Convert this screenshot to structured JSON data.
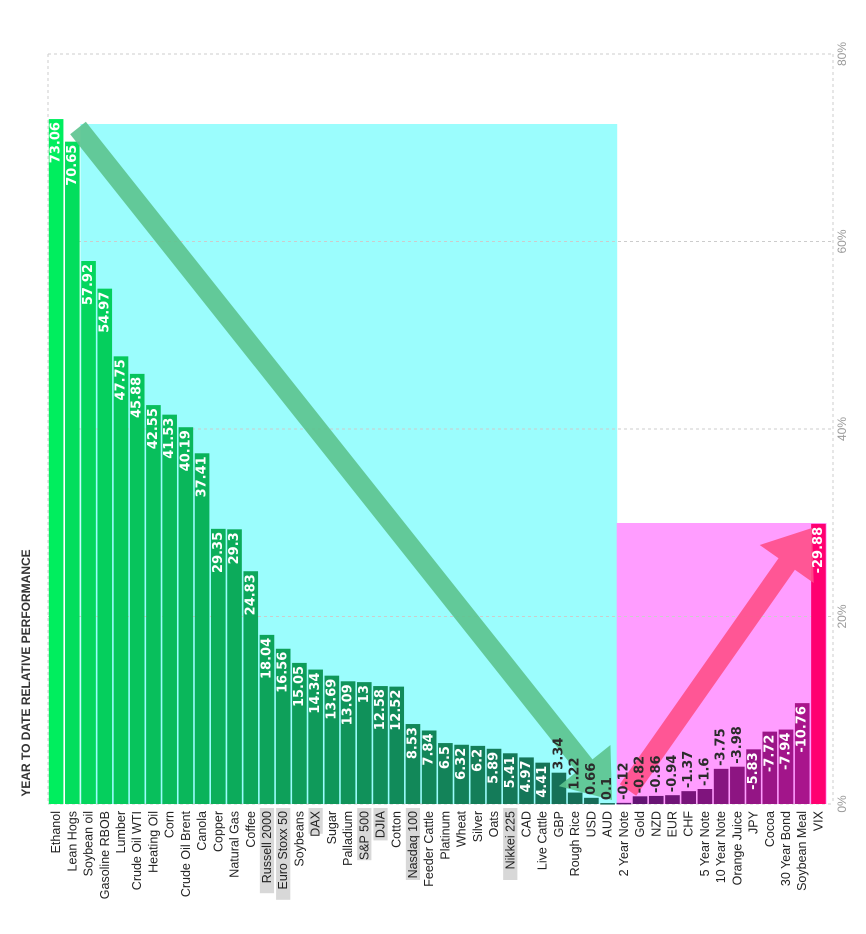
{
  "chart_data": {
    "type": "bar",
    "orientation": "rotated",
    "ylabel": "YEAR TO DATE RELATIVE PERFORMANCE",
    "ylim": [
      0,
      80
    ],
    "yticks": [
      "0%",
      "20%",
      "40%",
      "60%",
      "80%"
    ],
    "grid": true,
    "categories": [
      "Ethanol",
      "Lean Hogs",
      "Soybean oil",
      "Gasoline RBOB",
      "Lumber",
      "Crude Oil WTI",
      "Heating Oil",
      "Corn",
      "Crude Oil Brent",
      "Canola",
      "Copper",
      "Natural Gas",
      "Coffee",
      "Russell 2000",
      "Euro Stoxx 50",
      "Soybeans",
      "DAX",
      "Sugar",
      "Palladium",
      "S&P 500",
      "DJIA",
      "Cotton",
      "Nasdaq 100",
      "Feeder Cattle",
      "Platinum",
      "Wheat",
      "Silver",
      "Oats",
      "Nikkei 225",
      "CAD",
      "Live Cattle",
      "GBP",
      "Rough Rice",
      "USD",
      "AUD",
      "2 Year Note",
      "Gold",
      "NZD",
      "EUR",
      "CHF",
      "5 Year Note",
      "10 Year Note",
      "Orange Juice",
      "JPY",
      "Cocoa",
      "30 Year Bond",
      "Soybean Meal",
      "VIX"
    ],
    "values": [
      73.06,
      70.65,
      57.92,
      54.97,
      47.75,
      45.88,
      42.55,
      41.53,
      40.19,
      37.41,
      29.35,
      29.3,
      24.83,
      18.04,
      16.56,
      15.05,
      14.34,
      13.69,
      13.09,
      13,
      12.58,
      12.52,
      8.53,
      7.84,
      6.5,
      6.32,
      6.2,
      5.89,
      5.41,
      4.97,
      4.41,
      3.34,
      1.22,
      0.66,
      0.1,
      -0.12,
      -0.82,
      -0.86,
      -0.94,
      -1.37,
      -1.6,
      -3.75,
      -3.98,
      -5.83,
      -7.72,
      -7.94,
      -10.76,
      -29.88
    ],
    "value_labels": [
      "73.06",
      "70.65",
      "57.92",
      "54.97",
      "47.75",
      "45.88",
      "42.55",
      "41.53",
      "40.19",
      "37.41",
      "29.35",
      "29.3",
      "24.83",
      "18.04",
      "16.56",
      "15.05",
      "14.34",
      "13.69",
      "13.09",
      "13",
      "12.58",
      "12.52",
      "8.53",
      "7.84",
      "6.5",
      "6.32",
      "6.2",
      "5.89",
      "5.41",
      "4.97",
      "4.41",
      "3.34",
      "1.22",
      "0.66",
      "0.1",
      "-0.12",
      "-0.82",
      "-0.86",
      "-0.94",
      "-1.37",
      "-1.6",
      "-3.75",
      "-3.98",
      "-5.83",
      "-7.72",
      "-7.94",
      "-10.76",
      "-29.88"
    ],
    "highlighted_categories": [
      "Russell 2000",
      "Euro Stoxx 50",
      "DAX",
      "S&P 500",
      "DJIA",
      "Nasdaq 100",
      "Nikkei 225"
    ],
    "colors": {
      "positive_start": "#00ee5e",
      "positive_end": "#176a58",
      "negative_start": "#5c1470",
      "negative_end": "#ff0070",
      "positive_region": "#9bfdfd",
      "negative_region": "#ff9dff",
      "down_arrow": "#5cc38e",
      "up_arrow": "#ff4f8a",
      "highlight_label_bg": "#d8d8d8",
      "grid": "#cccccc"
    }
  }
}
